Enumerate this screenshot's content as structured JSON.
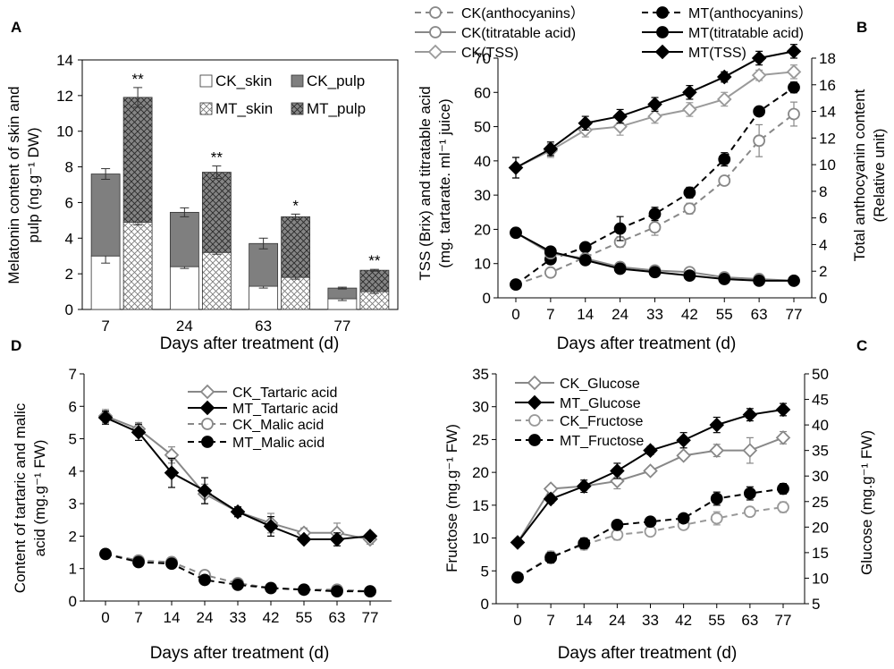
{
  "chart_data": [
    {
      "panel": "A",
      "type": "bar",
      "subtype": "stacked",
      "xlabel": "Days after treatment (d)",
      "ylabel_lines": [
        "Melatonin content of skin and",
        "pulp (ng.g⁻¹ DW)"
      ],
      "categories": [
        "7",
        "24",
        "63",
        "77"
      ],
      "ylim": [
        0,
        14
      ],
      "yticks": [
        0,
        2,
        4,
        6,
        8,
        10,
        12,
        14
      ],
      "series": [
        {
          "name": "CK_skin",
          "group": "CK",
          "part": "skin",
          "values": [
            3.0,
            2.4,
            1.3,
            0.6
          ],
          "err": [
            0.4,
            0.1,
            0.1,
            0.1
          ]
        },
        {
          "name": "CK_pulp",
          "group": "CK",
          "part": "pulp",
          "values": [
            4.6,
            3.05,
            2.4,
            0.6
          ],
          "err": [
            0.3,
            0.25,
            0.3,
            0.05
          ]
        },
        {
          "name": "MT_skin",
          "group": "MT",
          "part": "skin",
          "values": [
            4.9,
            3.2,
            1.8,
            1.0
          ],
          "err": [
            0.15,
            0.1,
            0.1,
            0.1
          ]
        },
        {
          "name": "MT_pulp",
          "group": "MT",
          "part": "pulp",
          "values": [
            7.0,
            4.5,
            3.4,
            1.2
          ],
          "err": [
            0.55,
            0.35,
            0.15,
            0.05
          ]
        }
      ],
      "significance": [
        "**",
        "**",
        "*",
        "**"
      ],
      "legend": [
        "CK_skin",
        "CK_pulp",
        "MT_skin",
        "MT_pulp"
      ]
    },
    {
      "panel": "B",
      "type": "line",
      "xlabel": "Days after treatment (d)",
      "x": [
        "0",
        "7",
        "14",
        "24",
        "33",
        "42",
        "55",
        "63",
        "77"
      ],
      "ylabel_left_lines": [
        "TSS (Brix) and titratable acid",
        "(mg. tartarate. ml⁻¹ juice)"
      ],
      "ylabel_right_lines": [
        "Total anthocyanin content",
        "(Relative unit)"
      ],
      "ylim_left": [
        0,
        70
      ],
      "ylim_right": [
        0,
        18
      ],
      "yticks_left": [
        0,
        10,
        20,
        30,
        40,
        50,
        60,
        70
      ],
      "yticks_right": [
        0,
        2,
        4,
        6,
        8,
        10,
        12,
        14,
        16,
        18
      ],
      "series": [
        {
          "name": "CK(anthocyanins）",
          "axis": "right",
          "values": [
            1.0,
            1.9,
            null,
            4.2,
            5.3,
            6.7,
            8.8,
            11.8,
            13.8
          ],
          "err": [
            0.2,
            0.2,
            null,
            0.4,
            0.6,
            0.4,
            0.3,
            1.2,
            0.9
          ]
        },
        {
          "name": "MT(anthocyanins）",
          "axis": "right",
          "values": [
            1.0,
            2.9,
            3.8,
            5.2,
            6.3,
            7.9,
            10.4,
            14.0,
            15.8
          ],
          "err": [
            0.2,
            0.2,
            0.2,
            0.9,
            0.5,
            0.4,
            0.5,
            0.3,
            0.4
          ]
        },
        {
          "name": "CK(titratable acid)",
          "axis": "left",
          "values": [
            19,
            13,
            11.5,
            9,
            8,
            7.5,
            6,
            5.5,
            5
          ],
          "err": [
            0.5,
            0.5,
            0.5,
            0.5,
            0.5,
            0.5,
            0.5,
            0.5,
            0.5
          ]
        },
        {
          "name": "MT(titratable acid)",
          "axis": "left",
          "values": [
            19,
            13.5,
            11,
            8.5,
            7.5,
            6.5,
            5.5,
            5,
            5
          ],
          "err": [
            0.5,
            0.5,
            0.5,
            0.5,
            0.5,
            0.5,
            0.5,
            0.5,
            0.5
          ]
        },
        {
          "name": "CK(TSS)",
          "axis": "left",
          "values": [
            38,
            43,
            49,
            50,
            53,
            55,
            58,
            65,
            66
          ],
          "err": [
            3,
            2,
            2,
            2.5,
            2,
            2,
            2,
            1.5,
            2
          ]
        },
        {
          "name": "MT(TSS)",
          "axis": "left",
          "values": [
            38,
            43.5,
            51,
            53,
            56.5,
            60,
            64.5,
            70,
            72
          ],
          "err": [
            3,
            2,
            2,
            2,
            2,
            2,
            1.5,
            2,
            2
          ]
        }
      ]
    },
    {
      "panel": "D",
      "type": "line",
      "xlabel": "Days after treatment (d)",
      "x": [
        "0",
        "7",
        "14",
        "24",
        "33",
        "42",
        "55",
        "63",
        "77"
      ],
      "ylabel_lines": [
        "Content of tartaric and malic",
        "acid (mg.g⁻¹ FW)"
      ],
      "ylim": [
        0,
        7
      ],
      "yticks": [
        0,
        1,
        2,
        3,
        4,
        5,
        6,
        7
      ],
      "series": [
        {
          "name": "CK_Tartaric acid",
          "values": [
            5.7,
            5.3,
            4.5,
            3.3,
            2.75,
            2.4,
            2.1,
            2.1,
            1.9
          ],
          "err": [
            0.2,
            0.2,
            0.25,
            0.3,
            0.15,
            0.3,
            0.15,
            0.3,
            0.15
          ]
        },
        {
          "name": "MT_Tartaric acid",
          "values": [
            5.65,
            5.2,
            3.95,
            3.4,
            2.75,
            2.3,
            1.9,
            1.9,
            2.0
          ],
          "err": [
            0.2,
            0.25,
            0.45,
            0.4,
            0.15,
            0.3,
            0.1,
            0.2,
            0.1
          ]
        },
        {
          "name": "CK_Malic acid",
          "values": [
            1.45,
            1.25,
            1.2,
            0.8,
            0.55,
            0.4,
            0.35,
            0.35,
            0.3
          ],
          "err": [
            0.1,
            0.1,
            0.1,
            0.1,
            0.05,
            0.05,
            0.05,
            0.05,
            0.05
          ]
        },
        {
          "name": "MT_Malic acid",
          "values": [
            1.45,
            1.2,
            1.15,
            0.65,
            0.5,
            0.4,
            0.35,
            0.3,
            0.3
          ],
          "err": [
            0.1,
            0.1,
            0.1,
            0.1,
            0.05,
            0.05,
            0.05,
            0.05,
            0.05
          ]
        }
      ]
    },
    {
      "panel": "C",
      "type": "line",
      "xlabel": "Days after treatment (d)",
      "x": [
        "0",
        "7",
        "14",
        "24",
        "33",
        "42",
        "55",
        "63",
        "77"
      ],
      "ylabel_left": "Fructose (mg.g⁻¹ FW)",
      "ylabel_right": "Glucose (mg.g⁻¹ FW)",
      "ylim_left": [
        0,
        35
      ],
      "ylim_right": [
        5,
        50
      ],
      "yticks_left": [
        0,
        5,
        10,
        15,
        20,
        25,
        30,
        35
      ],
      "yticks_right": [
        5,
        10,
        15,
        20,
        25,
        30,
        35,
        40,
        45,
        50
      ],
      "series": [
        {
          "name": "CK_Glucose",
          "axis": "right",
          "values": [
            17,
            27.5,
            28,
            29,
            31,
            34,
            35,
            35,
            37.5
          ],
          "err": [
            0.5,
            0.5,
            0.8,
            1.5,
            0.5,
            0.6,
            1.2,
            2.5,
            1.2
          ]
        },
        {
          "name": "MT_Glucose",
          "axis": "right",
          "values": [
            17,
            25.5,
            28,
            31,
            35,
            37,
            40,
            42,
            43
          ],
          "err": [
            0.5,
            0.8,
            1.2,
            1.5,
            0.8,
            1.5,
            1.5,
            1.2,
            1.2
          ]
        },
        {
          "name": "CK_Fructose",
          "axis": "left",
          "values": [
            4,
            7.2,
            9,
            10.5,
            11,
            12,
            13,
            14,
            14.7
          ],
          "err": [
            0.3,
            0.8,
            0.8,
            0.8,
            0.4,
            0.5,
            1.0,
            0.7,
            0.8
          ]
        },
        {
          "name": "MT_Fructose",
          "axis": "left",
          "values": [
            4,
            7.0,
            9.2,
            12,
            12.5,
            13,
            16,
            16.8,
            17.5
          ],
          "err": [
            0.3,
            0.8,
            0.8,
            0.4,
            0.3,
            0.6,
            1.0,
            1.0,
            0.8
          ]
        }
      ]
    }
  ],
  "panel_labels": [
    "A",
    "B",
    "C",
    "D"
  ]
}
